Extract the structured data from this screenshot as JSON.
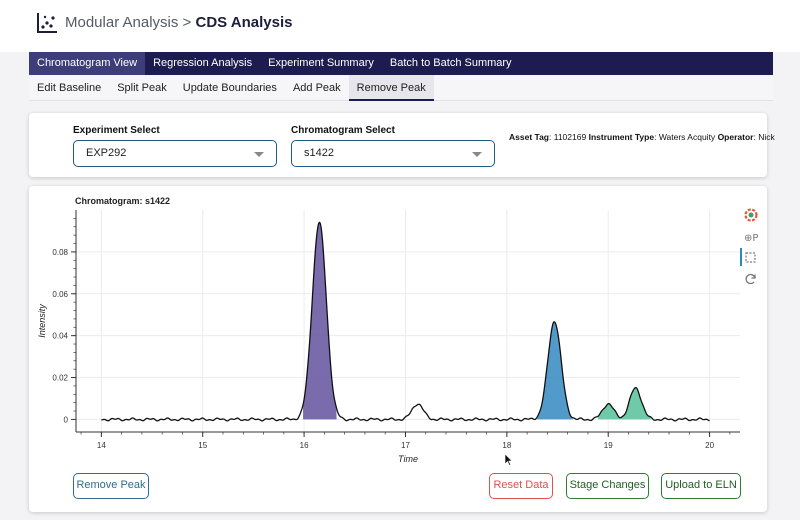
{
  "app": {
    "title_prefix": "Modular Analysis > ",
    "title_main": "CDS Analysis"
  },
  "main_tabs": [
    {
      "label": "Chromatogram View",
      "active": true
    },
    {
      "label": "Regression Analysis",
      "active": false
    },
    {
      "label": "Experiment Summary",
      "active": false
    },
    {
      "label": "Batch to Batch Summary",
      "active": false
    }
  ],
  "sub_tabs": [
    {
      "label": "Edit Baseline",
      "active": false
    },
    {
      "label": "Split Peak",
      "active": false
    },
    {
      "label": "Update Boundaries",
      "active": false
    },
    {
      "label": "Add Peak",
      "active": false
    },
    {
      "label": "Remove Peak",
      "active": true
    }
  ],
  "selectors": {
    "experiment_label": "Experiment Select",
    "experiment_value": "EXP292",
    "chromatogram_label": "Chromatogram Select",
    "chromatogram_value": "s1422"
  },
  "meta": {
    "asset_tag_label": "Asset Tag",
    "asset_tag_value": "1102169",
    "instrument_label": "Instrument Type",
    "instrument_value": "Waters Acquity",
    "operator_label": "Operator",
    "operator_value": "Nick"
  },
  "chart_data": {
    "type": "area",
    "title": "Chromatogram: s1422",
    "xlabel": "Time",
    "ylabel": "Intensity",
    "xlim": [
      13.75,
      20.3
    ],
    "ylim": [
      -0.006,
      0.1
    ],
    "x_ticks": [
      14,
      15,
      16,
      17,
      18,
      19,
      20
    ],
    "y_ticks": [
      0,
      0.02,
      0.04,
      0.06,
      0.08
    ],
    "y_tick_labels": [
      "0",
      "0.02",
      "0.04",
      "0.06",
      "0.08"
    ],
    "grid": true,
    "trace_range": [
      14.0,
      20.0
    ],
    "peaks": [
      {
        "center": 16.15,
        "height": 0.094,
        "width": 0.07,
        "color": "#6a5ba3"
      },
      {
        "center": 17.12,
        "height": 0.0075,
        "width": 0.055,
        "color": null
      },
      {
        "center": 18.47,
        "height": 0.047,
        "width": 0.065,
        "color": "#3f8fc4"
      },
      {
        "center": 19.0,
        "height": 0.0075,
        "width": 0.055,
        "color": "#5fc4a0"
      },
      {
        "center": 19.27,
        "height": 0.015,
        "width": 0.058,
        "color": "#5fc4a0"
      }
    ],
    "shaded_regions": [
      {
        "start": 15.99,
        "end": 16.32,
        "color": "#6a5ba3"
      },
      {
        "start": 18.3,
        "end": 18.65,
        "color": "#3f8fc4"
      },
      {
        "start": 18.9,
        "end": 19.42,
        "color": "#5fc4a0"
      }
    ]
  },
  "toolbar": {
    "icons": [
      "bokeh-logo-icon",
      "pan-icon",
      "box-select-icon",
      "reset-icon"
    ]
  },
  "buttons": {
    "remove_peak": "Remove Peak",
    "reset_data": "Reset Data",
    "stage_changes": "Stage Changes",
    "upload_eln": "Upload to ELN"
  }
}
